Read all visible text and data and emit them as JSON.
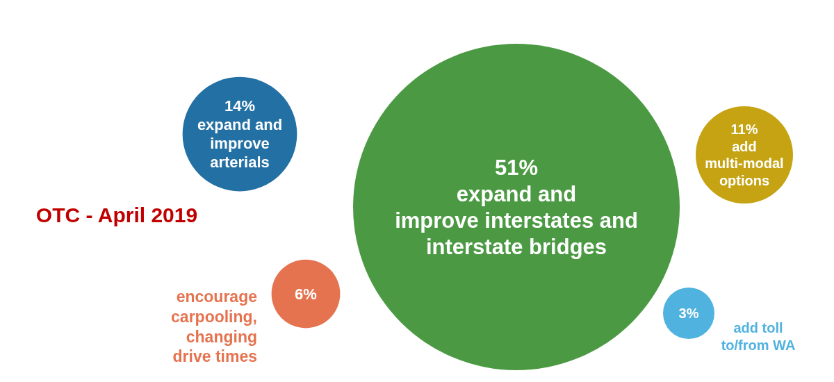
{
  "chart_data": {
    "type": "other",
    "title": "OTC - April 2019",
    "categories": [
      "expand and improve interstates and interstate bridges",
      "expand and improve arterials",
      "add multi-modal options",
      "encourage carpooling, changing drive times",
      "add toll to/from WA"
    ],
    "values": [
      51,
      14,
      11,
      6,
      3
    ],
    "value_labels": [
      "51%",
      "14%",
      "11%",
      "6%",
      "3%"
    ],
    "colors": [
      "#4b9a43",
      "#2370a4",
      "#c5a313",
      "#e5734f",
      "#50b2df"
    ]
  }
}
